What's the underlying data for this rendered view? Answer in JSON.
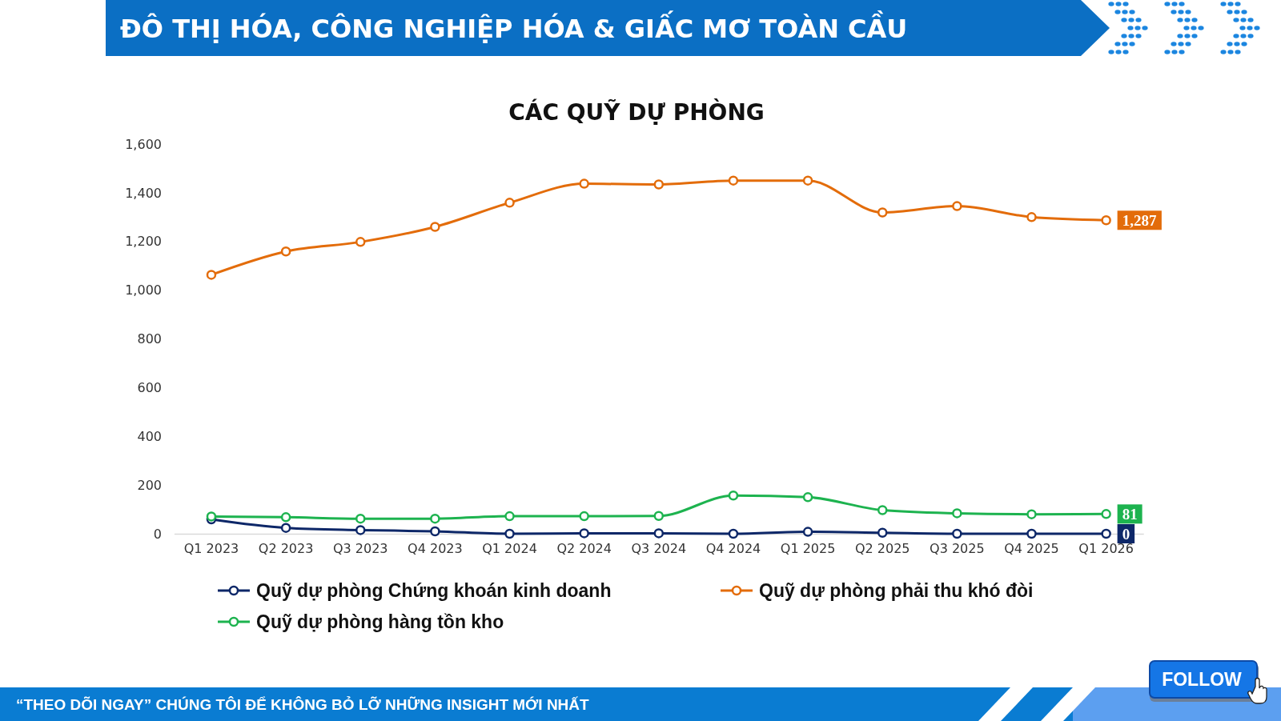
{
  "chart_data": {
    "type": "line",
    "title": "CÁC QUỸ DỰ PHÒNG",
    "categories": [
      "Q1 2023",
      "Q2 2023",
      "Q3 2023",
      "Q4 2023",
      "Q1 2024",
      "Q2 2024",
      "Q3 2024",
      "Q4 2024",
      "Q1 2025",
      "Q2 2025",
      "Q3 2025",
      "Q4 2025",
      "Q1 2026"
    ],
    "series": [
      {
        "name": "Quỹ dự phòng Chứng khoán kinh doanh",
        "color": "#0d2768",
        "values": [
          59,
          24,
          15,
          10,
          0,
          2,
          2,
          0,
          8,
          4,
          0,
          0,
          0
        ],
        "value_labels": [
          null,
          null,
          null,
          null,
          null,
          null,
          null,
          null,
          null,
          null,
          null,
          null,
          "0"
        ]
      },
      {
        "name": "Quỹ dự phòng phải thu khó đòi",
        "color": "#e36c0a",
        "values": [
          1063,
          1159,
          1198,
          1260,
          1359,
          1437,
          1434,
          1450,
          1450,
          1319,
          1345,
          1300,
          1287
        ],
        "value_labels": [
          null,
          null,
          null,
          null,
          null,
          null,
          null,
          null,
          null,
          null,
          null,
          null,
          "1,287"
        ]
      },
      {
        "name": "Quỹ dự phòng hàng tồn kho",
        "color": "#1db34f",
        "values": [
          71,
          68,
          62,
          62,
          72,
          72,
          73,
          157,
          150,
          97,
          84,
          80,
          81
        ],
        "value_labels": [
          null,
          null,
          null,
          null,
          null,
          null,
          null,
          null,
          null,
          null,
          null,
          null,
          "81"
        ]
      }
    ],
    "ylim": [
      0,
      1600
    ],
    "yticks": [
      0,
      200,
      400,
      600,
      800,
      {
        "value": 1000,
        "label": "1,000"
      },
      {
        "value": 1200,
        "label": "1,200"
      },
      {
        "value": 1400,
        "label": "1,400"
      },
      {
        "value": 1600,
        "label": "1,600"
      }
    ],
    "grid": false,
    "legend": "bottom",
    "marker": "circle",
    "line_style": "solid",
    "annotations": [
      "ĐÔ THỊ HÓA, CÔNG NGHIỆP HÓA & GIẤC MƠ TOÀN CẦU",
      "“THEO DÕI NGAY” CHÚNG TÔI ĐỂ KHÔNG BỎ LỠ NHỮNG INSIGHT MỚI NHẤT",
      "FOLLOW"
    ]
  }
}
